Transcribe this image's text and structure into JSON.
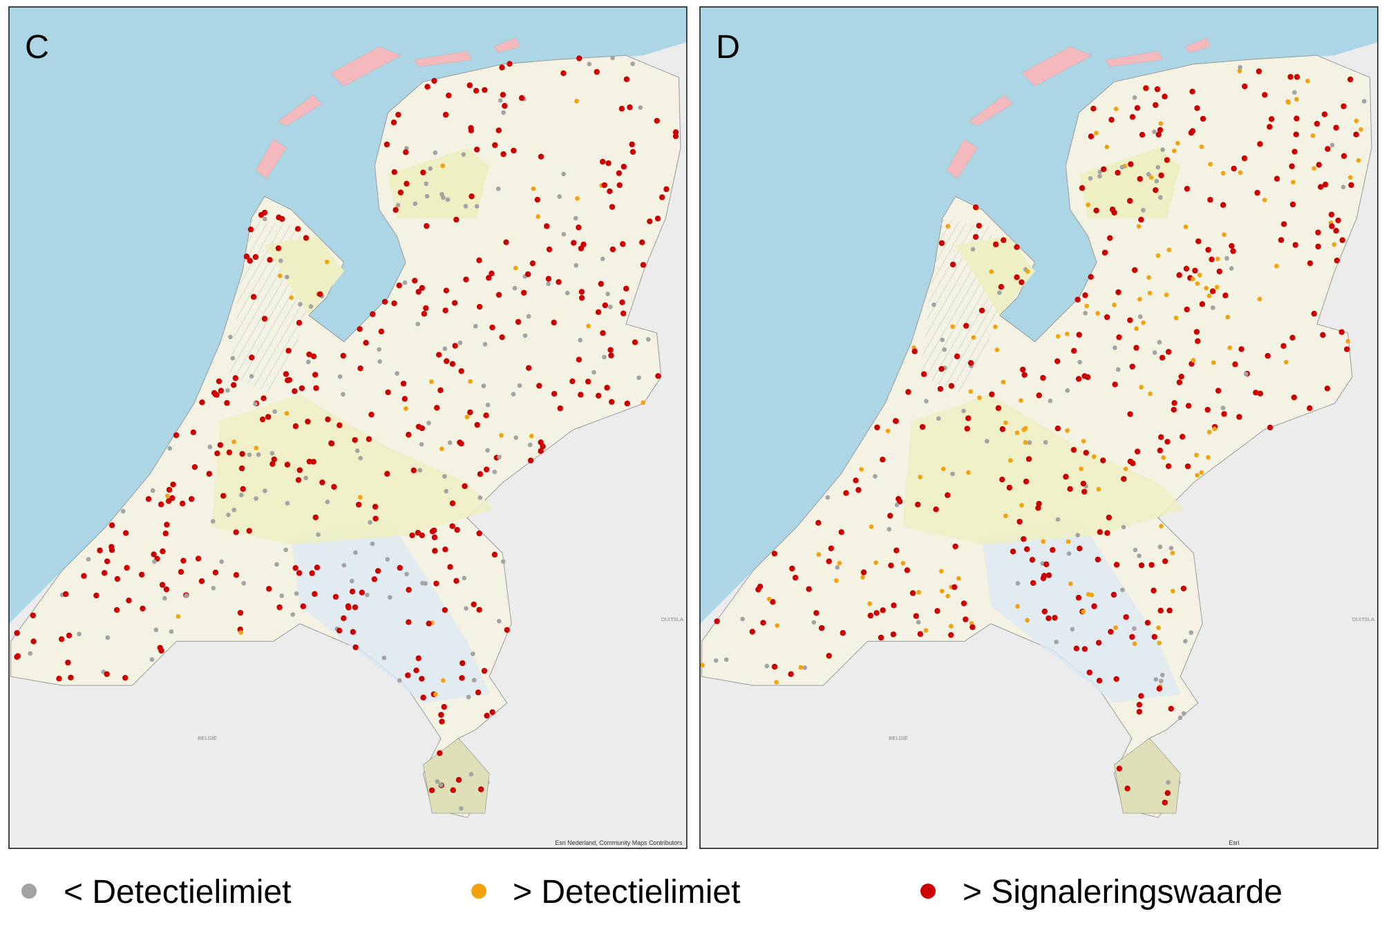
{
  "panels": [
    {
      "label": "C",
      "attribution": "Esri Nederland, Community Maps Contributors",
      "country_labels": [
        "BELGIË",
        "DUITSLA"
      ]
    },
    {
      "label": "D",
      "attribution": "Esri",
      "country_labels": [
        "BELGIË",
        "DUITSLA"
      ]
    }
  ],
  "legend": [
    {
      "label": "< Detectielimiet",
      "color": "#a3a3a3"
    },
    {
      "label": "> Detectielimiet",
      "color": "#f2a20c"
    },
    {
      "label": "> Signaleringswaarde",
      "color": "#cc0000"
    }
  ]
}
